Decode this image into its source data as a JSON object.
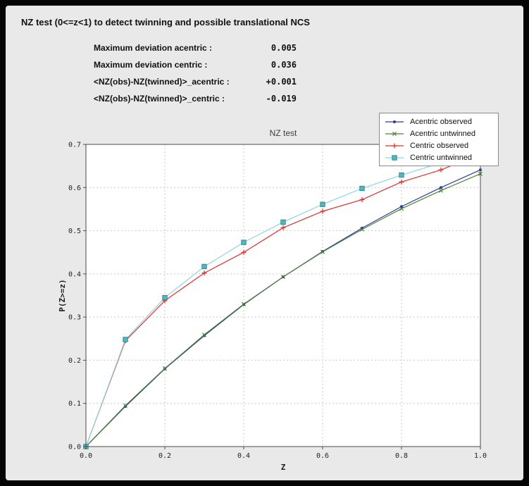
{
  "header": {
    "title": "NZ test (0<=z<1) to detect twinning and possible translational NCS"
  },
  "stats": {
    "rows": [
      {
        "label": "Maximum deviation acentric :",
        "value": "0.005"
      },
      {
        "label": "Maximum deviation centric :",
        "value": "0.036"
      },
      {
        "label": "<NZ(obs)-NZ(twinned)>_acentric :",
        "value": "+0.001"
      },
      {
        "label": "<NZ(obs)-NZ(twinned)>_centric :",
        "value": "-0.019"
      }
    ]
  },
  "colors": {
    "panel_background": "#e9e9e9",
    "frame": "#050505",
    "plot_background": "#ffffff",
    "axis": "#4a4a4a"
  },
  "chart_data": {
    "type": "line",
    "title": "NZ test",
    "xlabel": "Z",
    "ylabel": "P(Z>=z)",
    "xlim": [
      0.0,
      1.0
    ],
    "ylim": [
      0.0,
      0.7
    ],
    "xticks": [
      0.0,
      0.2,
      0.4,
      0.6,
      0.8,
      1.0
    ],
    "yticks": [
      0.0,
      0.1,
      0.2,
      0.3,
      0.4,
      0.5,
      0.6,
      0.7
    ],
    "grid": true,
    "grid_color": "#c9c9c9",
    "legend_position": "upper right",
    "x": [
      0.0,
      0.1,
      0.2,
      0.3,
      0.4,
      0.5,
      0.6,
      0.7,
      0.8,
      0.9,
      1.0
    ],
    "series": [
      {
        "name": "Acentric observed",
        "color": "#2b3a9d",
        "marker": "dot",
        "values": [
          0.0,
          0.093,
          0.18,
          0.257,
          0.329,
          0.393,
          0.452,
          0.506,
          0.556,
          0.6,
          0.641
        ]
      },
      {
        "name": "Acentric untwinned",
        "color": "#4f8038",
        "marker": "x",
        "values": [
          0.0,
          0.095,
          0.181,
          0.259,
          0.33,
          0.393,
          0.451,
          0.503,
          0.551,
          0.593,
          0.632
        ]
      },
      {
        "name": "Centric observed",
        "color": "#e0302e",
        "marker": "plus",
        "values": [
          0.0,
          0.245,
          0.338,
          0.402,
          0.45,
          0.507,
          0.545,
          0.572,
          0.613,
          0.641,
          0.678
        ]
      },
      {
        "name": "Centric untwinned",
        "color": "#8fd6dc",
        "marker": "square",
        "marker_color": "#55b7bd",
        "marker_edge": "#2f8b94",
        "values": [
          0.0,
          0.248,
          0.345,
          0.417,
          0.473,
          0.52,
          0.561,
          0.598,
          0.629,
          0.657,
          0.683
        ]
      }
    ]
  }
}
